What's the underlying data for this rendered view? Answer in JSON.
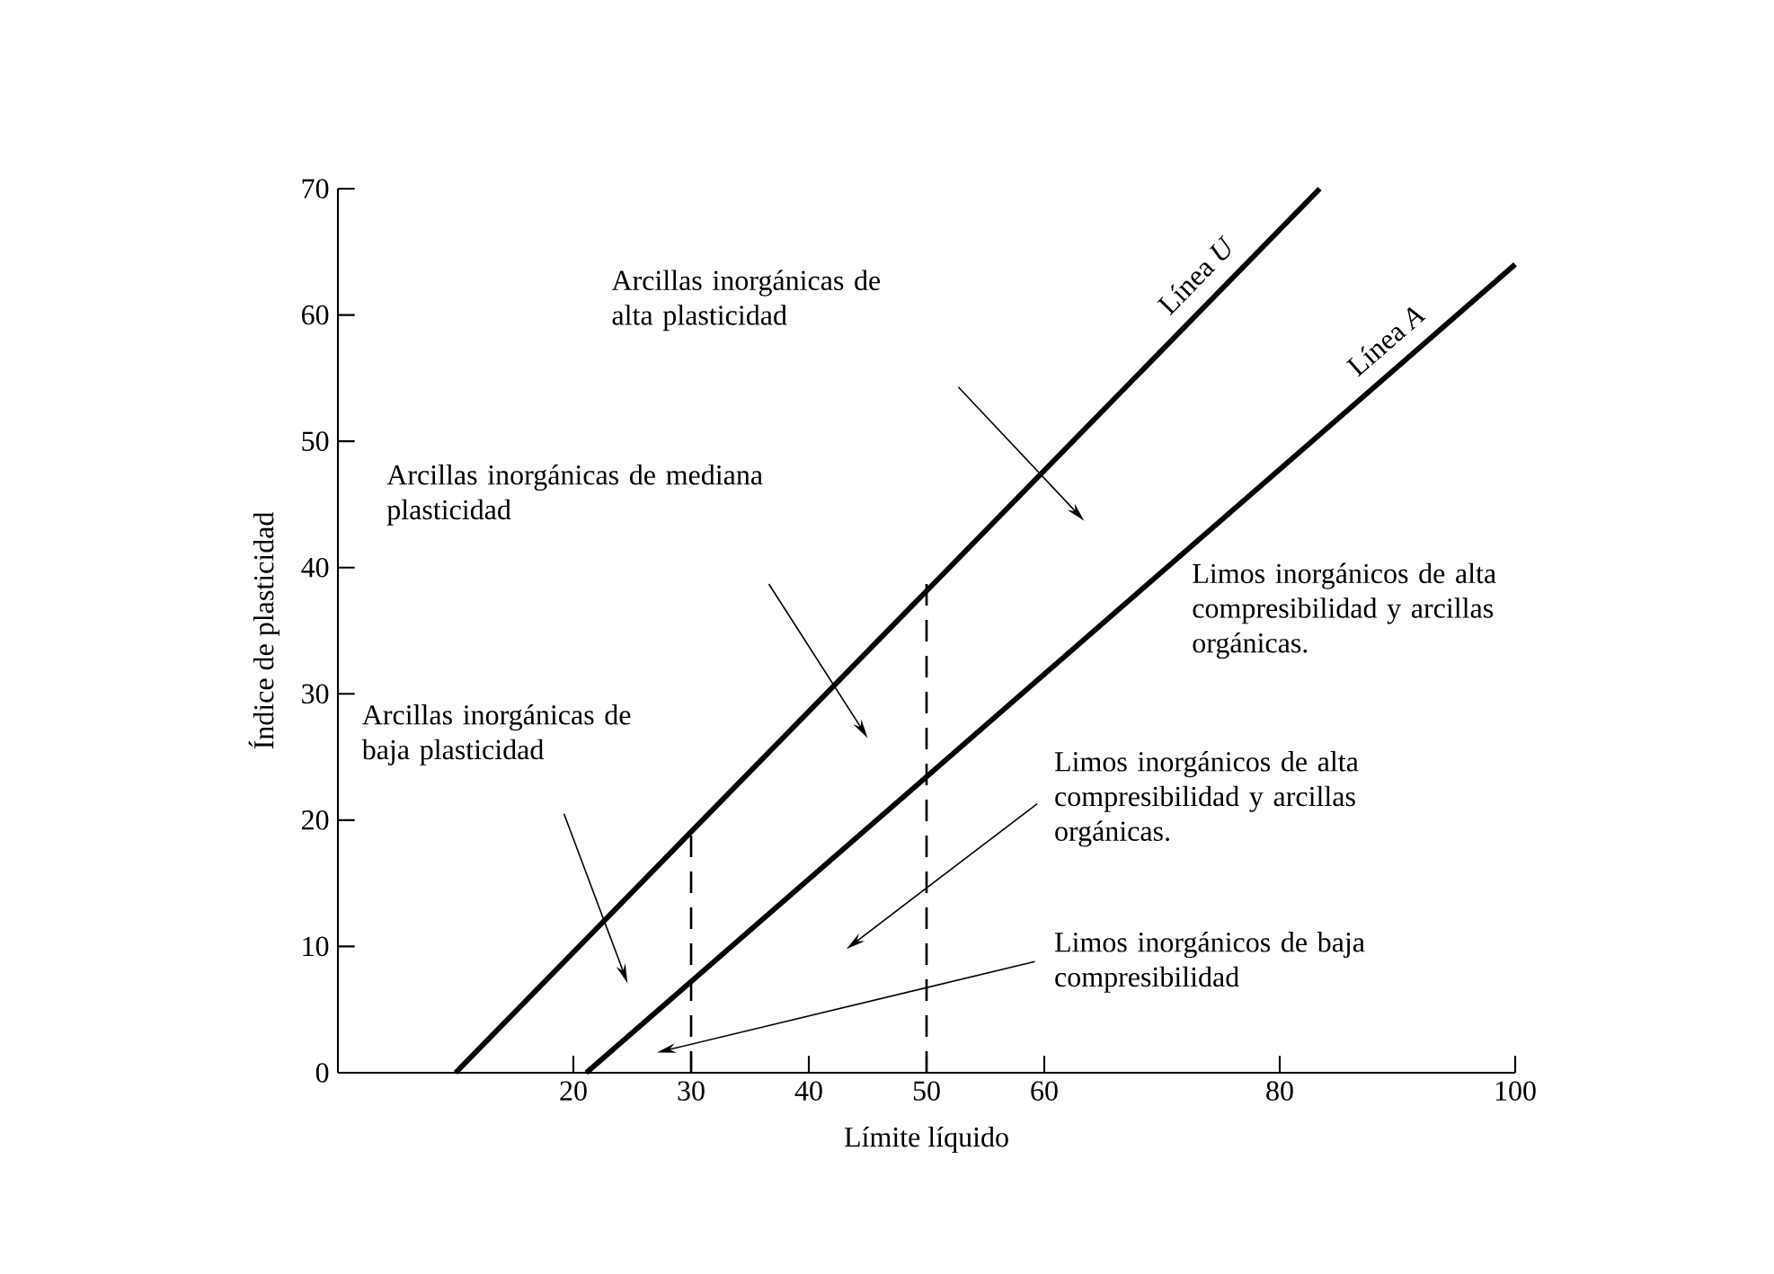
{
  "chart_data": {
    "type": "line",
    "xlabel": "Límite líquido",
    "ylabel": "Índice de plasticidad",
    "xlim": [
      0,
      100
    ],
    "ylim": [
      0,
      70
    ],
    "xticks": [
      20,
      30,
      40,
      50,
      60,
      80,
      100
    ],
    "yticks": [
      0,
      10,
      20,
      30,
      40,
      50,
      60,
      70
    ],
    "marker": "none",
    "line_style": "solid",
    "series": [
      {
        "name": "Línea *U*",
        "color": "#000000",
        "x": [
          10,
          83.4
        ],
        "values": [
          0,
          70
        ]
      },
      {
        "name": "Línea *A*",
        "color": "#000000",
        "x": [
          21.1,
          100
        ],
        "values": [
          0,
          64
        ]
      },
      {
        "color": "#000000",
        "x": [
          30,
          30
        ],
        "values": [
          0,
          19
        ],
        "line_style": "dashed"
      },
      {
        "color": "#000000",
        "x": [
          50,
          50
        ],
        "values": [
          0,
          39
        ],
        "line_style": "dashed"
      }
    ],
    "annotations": [
      "Arcillas inorgánicas de alta plasticidad",
      "Arcillas inorgánicas de mediana plasticidad",
      "Arcillas inorgánicas de baja plasticidad",
      "Limos inorgánicos de alta compresibilidad y arcillas orgánicas.",
      "Limos inorgánicos de baja compresibilidad",
      "Limos inorgánicos de alta compresibilidad y arcillas orgánicas."
    ]
  }
}
